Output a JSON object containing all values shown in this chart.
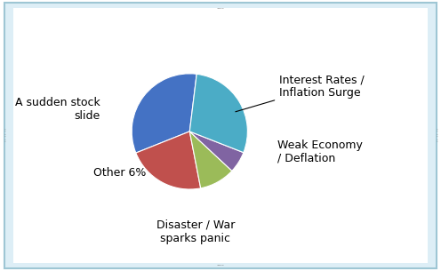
{
  "labels": [
    "Interest Rates /\nInflation Surge",
    "Weak Economy\n/ Deflation",
    "Disaster / War\nsparks panic",
    "Other 6%",
    "A sudden stock\nslide"
  ],
  "values": [
    33,
    22,
    10,
    6,
    29
  ],
  "colors": [
    "#4472C4",
    "#C0504D",
    "#9BBB59",
    "#8064A2",
    "#4BACC6"
  ],
  "background_color": "#DDEEF6",
  "border_color": "#9EC6D4",
  "inner_bg": "#FFFFFF",
  "label_color": "#000000",
  "label_fontsize": 9,
  "startangle": 83,
  "fig_bg": "#FFFFFF"
}
